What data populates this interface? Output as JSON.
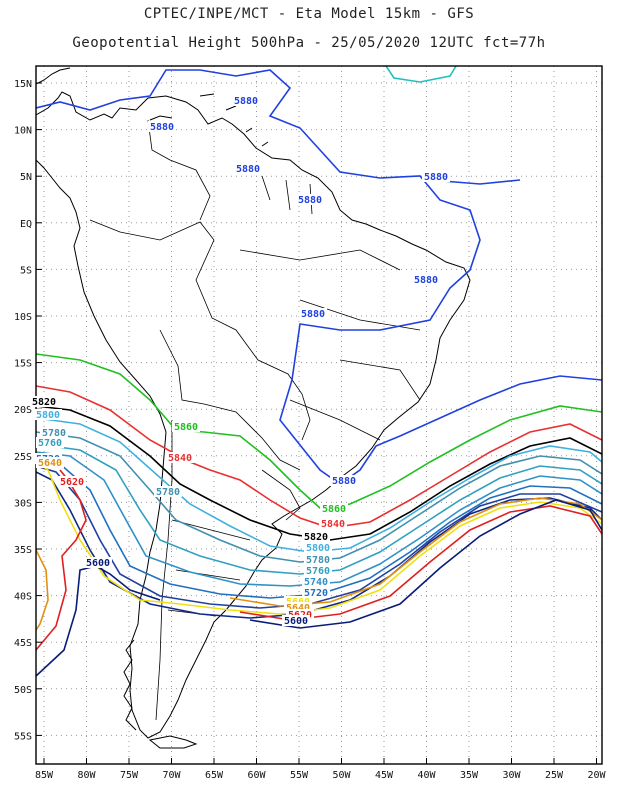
{
  "title_line1": "CPTEC/INPE/MCT -  Eta Model 15km - GFS",
  "title_line2": "Geopotential Height 500hPa - 25/05/2020 12UTC fct=77h",
  "lat_labels": [
    "15N",
    "10N",
    "5N",
    "EQ",
    "5S",
    "10S",
    "15S",
    "20S",
    "25S",
    "30S",
    "35S",
    "40S",
    "45S",
    "50S",
    "55S"
  ],
  "lon_labels": [
    "85W",
    "80W",
    "75W",
    "70W",
    "65W",
    "60W",
    "55W",
    "50W",
    "45W",
    "40W",
    "35W",
    "30W",
    "25W",
    "20W"
  ],
  "contours": [
    {
      "level": 5600,
      "color": "#0a1c78"
    },
    {
      "level": 5620,
      "color": "#e02020"
    },
    {
      "level": 5640,
      "color": "#e09010"
    },
    {
      "level": 5660,
      "color": "#f0e010"
    },
    {
      "level": 5680,
      "color": "#102888"
    },
    {
      "level": 5700,
      "color": "#2040a0"
    },
    {
      "level": 5720,
      "color": "#2070c0"
    },
    {
      "level": 5740,
      "color": "#3090c8"
    },
    {
      "level": 5760,
      "color": "#30a0c0"
    },
    {
      "level": 5780,
      "color": "#4090b0"
    },
    {
      "level": 5800,
      "color": "#40b0e0"
    },
    {
      "level": 5820,
      "color": "#000000"
    },
    {
      "level": 5840,
      "color": "#e83030"
    },
    {
      "level": 5860,
      "color": "#20c020"
    },
    {
      "level": 5880,
      "color": "#2040e0"
    }
  ],
  "contour_labels": [
    {
      "text": "5880",
      "color": "#2040e0"
    },
    {
      "text": "5880",
      "color": "#2040e0"
    },
    {
      "text": "5880",
      "color": "#2040e0"
    },
    {
      "text": "5880",
      "color": "#2040e0"
    },
    {
      "text": "5880",
      "color": "#2040e0"
    },
    {
      "text": "5880",
      "color": "#2040e0"
    },
    {
      "text": "5880",
      "color": "#2040e0"
    },
    {
      "text": "5880",
      "color": "#2040e0"
    },
    {
      "text": "5860",
      "color": "#20c020"
    },
    {
      "text": "5860",
      "color": "#20c020"
    },
    {
      "text": "5840",
      "color": "#e83030"
    },
    {
      "text": "5840",
      "color": "#e83030"
    },
    {
      "text": "5820",
      "color": "#000000"
    },
    {
      "text": "5820",
      "color": "#000000"
    },
    {
      "text": "5800",
      "color": "#40b0e0"
    },
    {
      "text": "5800",
      "color": "#40b0e0"
    },
    {
      "text": "5780",
      "color": "#4090b0"
    },
    {
      "text": "5780",
      "color": "#4090b0"
    },
    {
      "text": "5780",
      "color": "#4090b0"
    },
    {
      "text": "5760",
      "color": "#30a0c0"
    },
    {
      "text": "5760",
      "color": "#30a0c0"
    },
    {
      "text": "5740",
      "color": "#3090c8"
    },
    {
      "text": "5720",
      "color": "#2070c0"
    },
    {
      "text": "5720",
      "color": "#2070c0"
    },
    {
      "text": "5660",
      "color": "#f0e010"
    },
    {
      "text": "5640",
      "color": "#e09010"
    },
    {
      "text": "5640",
      "color": "#e09010"
    },
    {
      "text": "5620",
      "color": "#e02020"
    },
    {
      "text": "5620",
      "color": "#e02020"
    },
    {
      "text": "5600",
      "color": "#0a1c78"
    },
    {
      "text": "5600",
      "color": "#0a1c78"
    }
  ]
}
